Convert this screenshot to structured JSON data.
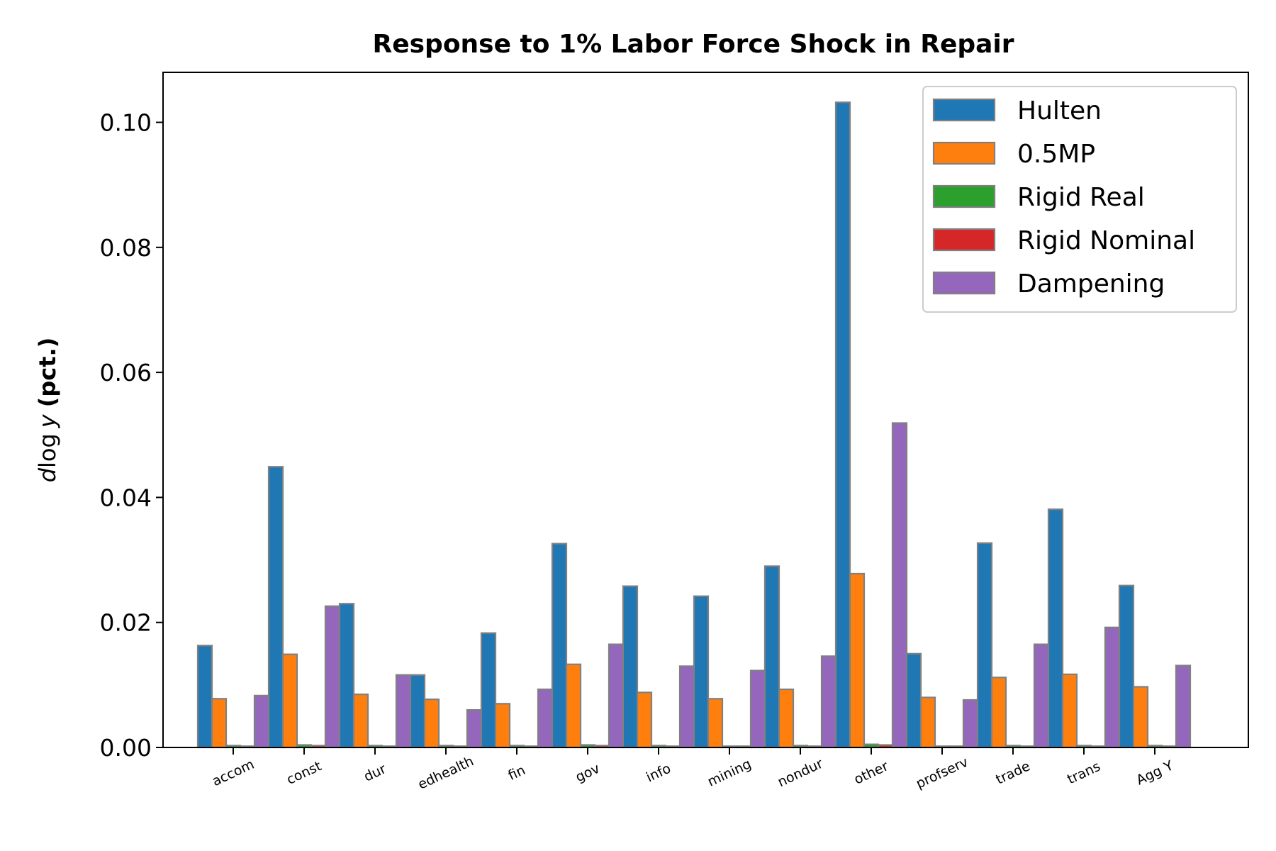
{
  "chart_data": {
    "type": "bar",
    "title": "Response to 1% Labor Force Shock in Repair",
    "ylabel_math": "d log y",
    "ylabel_math_d": "d",
    "ylabel_math_log": "log",
    "ylabel_math_y": "y",
    "ylabel_bold": "(pct.)",
    "xlabel": "",
    "ylim": [
      0,
      0.108
    ],
    "yticks": [
      "0.00",
      "0.02",
      "0.04",
      "0.06",
      "0.08",
      "0.10"
    ],
    "categories": [
      "accom",
      "const",
      "dur",
      "edhealth",
      "fin",
      "gov",
      "info",
      "mining",
      "nondur",
      "other",
      "profserv",
      "trade",
      "trans",
      "Agg Y"
    ],
    "legend_position": "top-right",
    "grid": false,
    "series": [
      {
        "name": "Hulten",
        "color": "#1f77b4",
        "values": [
          0.0163,
          0.0449,
          0.023,
          0.0116,
          0.0183,
          0.0326,
          0.0258,
          0.0242,
          0.029,
          0.1032,
          0.015,
          0.0327,
          0.0381,
          0.0259
        ]
      },
      {
        "name": "0.5MP",
        "color": "#ff7f0e",
        "values": [
          0.0078,
          0.0149,
          0.0085,
          0.0077,
          0.007,
          0.0133,
          0.0088,
          0.0078,
          0.0093,
          0.0278,
          0.008,
          0.0112,
          0.0117,
          0.0097
        ]
      },
      {
        "name": "Rigid Real",
        "color": "#2ca02c",
        "values": [
          0.0003,
          0.0004,
          0.0003,
          0.0003,
          0.0003,
          0.0004,
          0.0003,
          0.0002,
          0.0003,
          0.0005,
          0.0002,
          0.0003,
          0.0003,
          0.0003
        ]
      },
      {
        "name": "Rigid Nominal",
        "color": "#d62728",
        "values": [
          0.0002,
          0.0003,
          0.0002,
          0.0002,
          0.0002,
          0.0003,
          0.0002,
          0.0002,
          0.0002,
          0.0004,
          0.0002,
          0.0002,
          0.0002,
          0.0002
        ]
      },
      {
        "name": "Dampening",
        "color": "#9467bd",
        "values": [
          0.0083,
          0.0226,
          0.0116,
          0.006,
          0.0093,
          0.0165,
          0.013,
          0.0123,
          0.0146,
          0.0519,
          0.0076,
          0.0165,
          0.0192,
          0.0131
        ]
      }
    ],
    "bar_edge_color": "#808080"
  }
}
